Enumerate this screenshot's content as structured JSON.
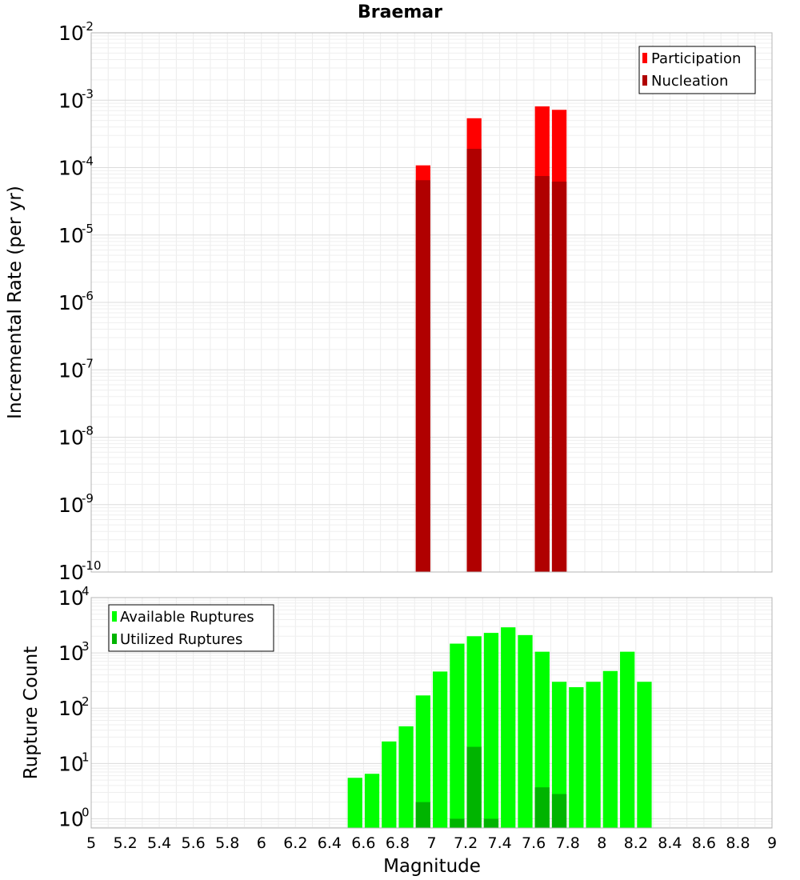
{
  "chart_data": [
    {
      "type": "bar",
      "title": "Braemar",
      "xlabel": "",
      "ylabel": "Incremental Rate (per yr)",
      "yscale": "log",
      "xlim": [
        5,
        9
      ],
      "ylim": [
        1e-10,
        0.01
      ],
      "y_decade_exponents": [
        "-2",
        "-3",
        "-4",
        "-5",
        "-6",
        "-7",
        "-8",
        "-9",
        "-10"
      ],
      "y_decade_base": "10",
      "bin_width": 0.1,
      "legend_position": "top-right",
      "grid": true,
      "series": [
        {
          "name": "Participation",
          "color": "#ff0000",
          "x": [
            6.95,
            7.25,
            7.65,
            7.75
          ],
          "values": [
            0.000108,
            0.00054,
            0.00081,
            0.00072
          ]
        },
        {
          "name": "Nucleation",
          "color": "#b00000",
          "x": [
            6.95,
            7.25,
            7.65,
            7.75
          ],
          "values": [
            6.5e-05,
            0.00019,
            7.5e-05,
            6.2e-05
          ]
        }
      ]
    },
    {
      "type": "bar",
      "xlabel": "Magnitude",
      "ylabel": "Rupture Count",
      "yscale": "log",
      "xlim": [
        5,
        9
      ],
      "ylim": [
        0.68,
        10000
      ],
      "y_decade_exponents": [
        "0",
        "1",
        "2",
        "3",
        "4"
      ],
      "y_decade_base": "10",
      "bin_width": 0.1,
      "legend_position": "top-left",
      "grid": true,
      "x_tick_labels": [
        "5",
        "5.2",
        "5.4",
        "5.6",
        "5.8",
        "6",
        "6.2",
        "6.4",
        "6.6",
        "6.8",
        "7",
        "7.2",
        "7.4",
        "7.6",
        "7.8",
        "8",
        "8.2",
        "8.4",
        "8.6",
        "8.8",
        "9"
      ],
      "series": [
        {
          "name": "Available Ruptures",
          "color": "#00ff00",
          "x": [
            6.55,
            6.65,
            6.75,
            6.85,
            6.95,
            7.05,
            7.15,
            7.25,
            7.35,
            7.45,
            7.55,
            7.65,
            7.75,
            7.85,
            7.95,
            8.05,
            8.15,
            8.25
          ],
          "values": [
            5.5,
            6.5,
            25,
            47,
            170,
            460,
            1470,
            2000,
            2300,
            2900,
            2100,
            1050,
            300,
            240,
            300,
            470,
            1050,
            300
          ]
        },
        {
          "name": "Utilized Ruptures",
          "color": "#00b400",
          "x": [
            6.95,
            7.15,
            7.25,
            7.35,
            7.65,
            7.75
          ],
          "values": [
            2,
            1,
            20,
            1,
            3.7,
            2.8
          ]
        }
      ]
    }
  ]
}
